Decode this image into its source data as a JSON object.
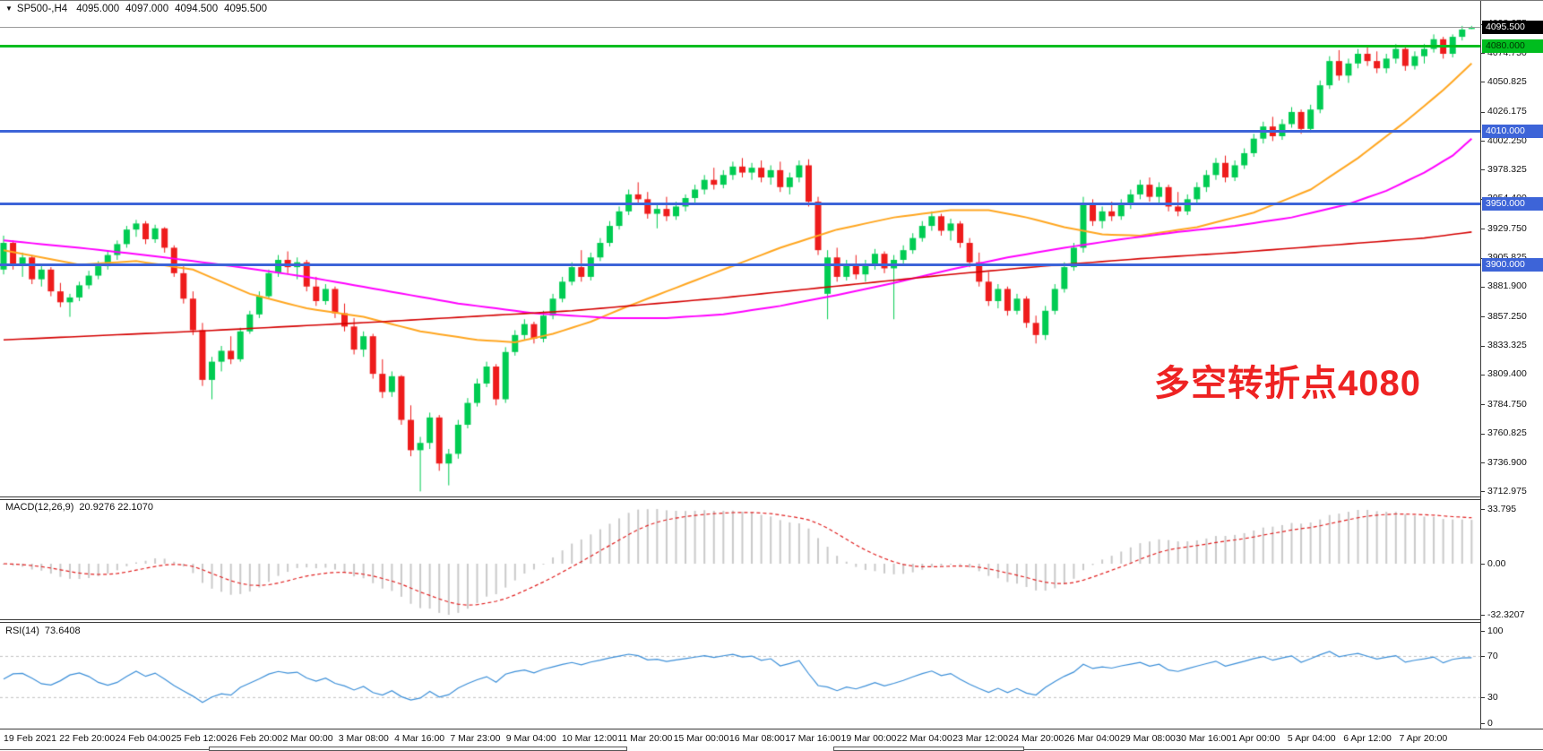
{
  "header": {
    "collapse_icon": "▼",
    "symbol": "SP500-,H4",
    "open": "4095.000",
    "high": "4097.000",
    "low": "4094.500",
    "close": "4095.500"
  },
  "annotation": {
    "text": "多空转折点4080",
    "color": "#ee2222"
  },
  "price_axis": {
    "ticks": [
      "4098.675",
      "4074.750",
      "4050.825",
      "4026.175",
      "4002.250",
      "3978.325",
      "3954.400",
      "3929.750",
      "3905.825",
      "3881.900",
      "3857.250",
      "3833.325",
      "3809.400",
      "3784.750",
      "3760.825",
      "3736.900",
      "3712.975"
    ]
  },
  "price_levels": [
    {
      "label": "4095.500",
      "price": 4095.5,
      "line_color": "#9a9a9a",
      "line_width": 1,
      "box_bg": "#000000",
      "box_fg": "#ffffff"
    },
    {
      "label": "4080.000",
      "price": 4080.0,
      "line_color": "#00bd1f",
      "line_width": 3,
      "box_bg": "#00bd1f",
      "box_fg": "#003300"
    },
    {
      "label": "4010.000",
      "price": 4010.0,
      "line_color": "#3d64d8",
      "line_width": 3,
      "box_bg": "#3d64d8",
      "box_fg": "#ffffff"
    },
    {
      "label": "3950.000",
      "price": 3950.0,
      "line_color": "#3d64d8",
      "line_width": 3,
      "box_bg": "#3d64d8",
      "box_fg": "#ffffff"
    },
    {
      "label": "3900.000",
      "price": 3900.0,
      "line_color": "#3d64d8",
      "line_width": 3,
      "box_bg": "#3d64d8",
      "box_fg": "#ffffff"
    }
  ],
  "macd": {
    "label": "MACD(12,26,9)",
    "values_text": "20.9276 22.1070",
    "axis_ticks": [
      "33.795",
      "0.00",
      "-32.3207"
    ],
    "fast": 12,
    "slow": 26,
    "signal": 9,
    "hist_color": "#c9c9c9",
    "signal_color": "#e02020"
  },
  "rsi": {
    "label": "RSI(14)",
    "value_text": "73.6408",
    "axis_ticks": [
      "100",
      "70",
      "30",
      "0"
    ],
    "period": 14,
    "levels": [
      70,
      30
    ],
    "line_color": "#3c8fd8",
    "level_color": "#c0c0c0"
  },
  "time_axis": {
    "labels": [
      "19 Feb 2021",
      "22 Feb 20:00",
      "24 Feb 04:00",
      "25 Feb 12:00",
      "26 Feb 20:00",
      "2 Mar 00:00",
      "3 Mar 08:00",
      "4 Mar 16:00",
      "7 Mar 23:00",
      "9 Mar 04:00",
      "10 Mar 12:00",
      "11 Mar 20:00",
      "15 Mar 00:00",
      "16 Mar 08:00",
      "17 Mar 16:00",
      "19 Mar 00:00",
      "22 Mar 04:00",
      "23 Mar 12:00",
      "24 Mar 20:00",
      "26 Mar 04:00",
      "29 Mar 08:00",
      "30 Mar 16:00",
      "1 Apr 00:00",
      "5 Apr 04:00",
      "6 Apr 12:00",
      "7 Apr 20:00"
    ]
  },
  "chart_data": {
    "type": "candlestick",
    "symbol": "SP500-",
    "timeframe": "H4",
    "colors": {
      "bull": "#00cc52",
      "bear": "#ee1c1c"
    },
    "ohlc": [
      [
        3896,
        3924,
        3892,
        3918
      ],
      [
        3918,
        3920,
        3896,
        3900
      ],
      [
        3900,
        3910,
        3890,
        3906
      ],
      [
        3906,
        3908,
        3884,
        3888
      ],
      [
        3888,
        3900,
        3882,
        3896
      ],
      [
        3896,
        3898,
        3874,
        3878
      ],
      [
        3878,
        3885,
        3865,
        3869
      ],
      [
        3869,
        3876,
        3857,
        3873
      ],
      [
        3873,
        3886,
        3870,
        3883
      ],
      [
        3883,
        3895,
        3880,
        3891
      ],
      [
        3891,
        3903,
        3888,
        3899
      ],
      [
        3899,
        3912,
        3896,
        3908
      ],
      [
        3908,
        3920,
        3904,
        3917
      ],
      [
        3917,
        3932,
        3914,
        3929
      ],
      [
        3929,
        3937,
        3923,
        3934
      ],
      [
        3934,
        3936,
        3917,
        3921
      ],
      [
        3921,
        3933,
        3918,
        3930
      ],
      [
        3930,
        3931,
        3910,
        3914
      ],
      [
        3914,
        3916,
        3890,
        3893
      ],
      [
        3893,
        3899,
        3868,
        3872
      ],
      [
        3872,
        3878,
        3842,
        3846
      ],
      [
        3846,
        3852,
        3800,
        3805
      ],
      [
        3805,
        3824,
        3789,
        3820
      ],
      [
        3820,
        3833,
        3812,
        3829
      ],
      [
        3829,
        3841,
        3818,
        3822
      ],
      [
        3822,
        3848,
        3820,
        3845
      ],
      [
        3845,
        3862,
        3843,
        3859
      ],
      [
        3859,
        3878,
        3856,
        3874
      ],
      [
        3874,
        3896,
        3872,
        3893
      ],
      [
        3893,
        3908,
        3890,
        3904
      ],
      [
        3904,
        3911,
        3893,
        3898
      ],
      [
        3898,
        3906,
        3888,
        3902
      ],
      [
        3902,
        3904,
        3878,
        3882
      ],
      [
        3882,
        3890,
        3866,
        3870
      ],
      [
        3870,
        3884,
        3867,
        3880
      ],
      [
        3880,
        3882,
        3856,
        3860
      ],
      [
        3860,
        3868,
        3845,
        3849
      ],
      [
        3849,
        3856,
        3826,
        3830
      ],
      [
        3830,
        3845,
        3824,
        3841
      ],
      [
        3841,
        3843,
        3806,
        3810
      ],
      [
        3810,
        3822,
        3790,
        3795
      ],
      [
        3795,
        3812,
        3791,
        3808
      ],
      [
        3808,
        3809,
        3768,
        3772
      ],
      [
        3772,
        3784,
        3742,
        3747
      ],
      [
        3747,
        3758,
        3713,
        3753
      ],
      [
        3753,
        3778,
        3748,
        3774
      ],
      [
        3774,
        3776,
        3730,
        3736
      ],
      [
        3736,
        3748,
        3718,
        3744
      ],
      [
        3744,
        3772,
        3740,
        3768
      ],
      [
        3768,
        3790,
        3765,
        3786
      ],
      [
        3786,
        3806,
        3783,
        3802
      ],
      [
        3802,
        3820,
        3799,
        3816
      ],
      [
        3816,
        3818,
        3784,
        3789
      ],
      [
        3789,
        3832,
        3786,
        3828
      ],
      [
        3828,
        3846,
        3825,
        3842
      ],
      [
        3842,
        3855,
        3838,
        3851
      ],
      [
        3851,
        3853,
        3835,
        3839
      ],
      [
        3839,
        3862,
        3836,
        3858
      ],
      [
        3858,
        3876,
        3855,
        3872
      ],
      [
        3872,
        3890,
        3869,
        3886
      ],
      [
        3886,
        3902,
        3883,
        3898
      ],
      [
        3898,
        3912,
        3886,
        3890
      ],
      [
        3890,
        3910,
        3887,
        3906
      ],
      [
        3906,
        3922,
        3903,
        3918
      ],
      [
        3918,
        3936,
        3915,
        3932
      ],
      [
        3932,
        3948,
        3929,
        3944
      ],
      [
        3944,
        3962,
        3941,
        3958
      ],
      [
        3958,
        3968,
        3950,
        3954
      ],
      [
        3954,
        3960,
        3938,
        3942
      ],
      [
        3942,
        3950,
        3930,
        3946
      ],
      [
        3946,
        3956,
        3936,
        3940
      ],
      [
        3940,
        3952,
        3937,
        3948
      ],
      [
        3948,
        3958,
        3944,
        3955
      ],
      [
        3955,
        3966,
        3951,
        3962
      ],
      [
        3962,
        3974,
        3958,
        3970
      ],
      [
        3970,
        3980,
        3962,
        3966
      ],
      [
        3966,
        3978,
        3963,
        3974
      ],
      [
        3974,
        3985,
        3970,
        3981
      ],
      [
        3981,
        3988,
        3972,
        3976
      ],
      [
        3976,
        3984,
        3970,
        3980
      ],
      [
        3980,
        3986,
        3968,
        3972
      ],
      [
        3972,
        3982,
        3966,
        3978
      ],
      [
        3978,
        3985,
        3960,
        3964
      ],
      [
        3964,
        3976,
        3958,
        3972
      ],
      [
        3972,
        3986,
        3968,
        3982
      ],
      [
        3982,
        3987,
        3948,
        3952
      ],
      [
        3952,
        3956,
        3908,
        3912
      ],
      [
        3876,
        3912,
        3855,
        3906
      ],
      [
        3906,
        3914,
        3886,
        3890
      ],
      [
        3890,
        3904,
        3887,
        3900
      ],
      [
        3900,
        3908,
        3888,
        3892
      ],
      [
        3892,
        3904,
        3886,
        3900
      ],
      [
        3900,
        3913,
        3896,
        3909
      ],
      [
        3909,
        3911,
        3893,
        3897
      ],
      [
        3897,
        3908,
        3855,
        3904
      ],
      [
        3904,
        3916,
        3900,
        3912
      ],
      [
        3912,
        3926,
        3909,
        3922
      ],
      [
        3922,
        3936,
        3919,
        3932
      ],
      [
        3932,
        3944,
        3928,
        3940
      ],
      [
        3940,
        3942,
        3924,
        3928
      ],
      [
        3928,
        3938,
        3920,
        3934
      ],
      [
        3934,
        3936,
        3914,
        3918
      ],
      [
        3918,
        3922,
        3898,
        3902
      ],
      [
        3902,
        3910,
        3882,
        3886
      ],
      [
        3886,
        3894,
        3866,
        3870
      ],
      [
        3870,
        3884,
        3864,
        3880
      ],
      [
        3880,
        3882,
        3858,
        3862
      ],
      [
        3862,
        3876,
        3859,
        3872
      ],
      [
        3872,
        3874,
        3848,
        3852
      ],
      [
        3852,
        3858,
        3835,
        3842
      ],
      [
        3842,
        3866,
        3838,
        3862
      ],
      [
        3862,
        3884,
        3859,
        3880
      ],
      [
        3880,
        3902,
        3877,
        3898
      ],
      [
        3898,
        3918,
        3895,
        3914
      ],
      [
        3914,
        3956,
        3910,
        3950
      ],
      [
        3950,
        3954,
        3932,
        3936
      ],
      [
        3936,
        3948,
        3930,
        3944
      ],
      [
        3944,
        3952,
        3936,
        3940
      ],
      [
        3940,
        3954,
        3937,
        3950
      ],
      [
        3950,
        3962,
        3946,
        3958
      ],
      [
        3958,
        3970,
        3954,
        3966
      ],
      [
        3966,
        3972,
        3952,
        3956
      ],
      [
        3956,
        3968,
        3950,
        3964
      ],
      [
        3964,
        3966,
        3944,
        3948
      ],
      [
        3948,
        3960,
        3940,
        3944
      ],
      [
        3944,
        3958,
        3941,
        3954
      ],
      [
        3954,
        3968,
        3950,
        3964
      ],
      [
        3964,
        3978,
        3960,
        3974
      ],
      [
        3974,
        3988,
        3970,
        3984
      ],
      [
        3984,
        3990,
        3968,
        3972
      ],
      [
        3972,
        3986,
        3969,
        3982
      ],
      [
        3982,
        3996,
        3979,
        3992
      ],
      [
        3992,
        4008,
        3989,
        4004
      ],
      [
        4004,
        4018,
        4000,
        4014
      ],
      [
        4014,
        4022,
        4002,
        4006
      ],
      [
        4006,
        4020,
        4003,
        4016
      ],
      [
        4016,
        4030,
        4013,
        4026
      ],
      [
        4026,
        4028,
        4008,
        4012
      ],
      [
        4012,
        4032,
        4009,
        4028
      ],
      [
        4028,
        4052,
        4025,
        4048
      ],
      [
        4048,
        4072,
        4045,
        4068
      ],
      [
        4068,
        4077,
        4052,
        4056
      ],
      [
        4056,
        4070,
        4050,
        4066
      ],
      [
        4066,
        4078,
        4062,
        4074
      ],
      [
        4074,
        4080,
        4064,
        4068
      ],
      [
        4068,
        4076,
        4058,
        4062
      ],
      [
        4062,
        4074,
        4058,
        4070
      ],
      [
        4070,
        4082,
        4066,
        4078
      ],
      [
        4078,
        4080,
        4060,
        4064
      ],
      [
        4064,
        4076,
        4061,
        4072
      ],
      [
        4072,
        4082,
        4066,
        4078
      ],
      [
        4078,
        4090,
        4075,
        4086
      ],
      [
        4086,
        4088,
        4070,
        4074
      ],
      [
        4074,
        4090,
        4071,
        4088
      ],
      [
        4088,
        4097,
        4085,
        4094
      ],
      [
        4095,
        4097,
        4094.5,
        4095.5
      ]
    ],
    "moving_averages": [
      {
        "name": "ma-fast",
        "color": "#ffa620",
        "width": 2,
        "points": [
          [
            0,
            3912
          ],
          [
            8,
            3900
          ],
          [
            14,
            3903
          ],
          [
            20,
            3896
          ],
          [
            26,
            3876
          ],
          [
            32,
            3864
          ],
          [
            38,
            3857
          ],
          [
            44,
            3845
          ],
          [
            50,
            3838
          ],
          [
            54,
            3836
          ],
          [
            58,
            3843
          ],
          [
            62,
            3853
          ],
          [
            66,
            3866
          ],
          [
            70,
            3878
          ],
          [
            76,
            3896
          ],
          [
            82,
            3914
          ],
          [
            88,
            3929
          ],
          [
            94,
            3939
          ],
          [
            100,
            3945
          ],
          [
            104,
            3945
          ],
          [
            108,
            3939
          ],
          [
            112,
            3931
          ],
          [
            116,
            3925
          ],
          [
            120,
            3924
          ],
          [
            126,
            3931
          ],
          [
            132,
            3943
          ],
          [
            138,
            3962
          ],
          [
            143,
            3988
          ],
          [
            148,
            4018
          ],
          [
            152,
            4044
          ],
          [
            155,
            4066
          ]
        ]
      },
      {
        "name": "ma-mid",
        "color": "#ff00ff",
        "width": 2,
        "points": [
          [
            0,
            3920
          ],
          [
            8,
            3914
          ],
          [
            16,
            3907
          ],
          [
            24,
            3899
          ],
          [
            32,
            3890
          ],
          [
            40,
            3879
          ],
          [
            48,
            3868
          ],
          [
            56,
            3860
          ],
          [
            64,
            3856
          ],
          [
            70,
            3856
          ],
          [
            76,
            3859
          ],
          [
            82,
            3866
          ],
          [
            88,
            3875
          ],
          [
            94,
            3885
          ],
          [
            100,
            3896
          ],
          [
            106,
            3906
          ],
          [
            112,
            3914
          ],
          [
            118,
            3921
          ],
          [
            124,
            3927
          ],
          [
            130,
            3932
          ],
          [
            136,
            3939
          ],
          [
            142,
            3950
          ],
          [
            146,
            3961
          ],
          [
            150,
            3976
          ],
          [
            153,
            3990
          ],
          [
            155,
            4004
          ]
        ]
      },
      {
        "name": "ma-slow",
        "color": "#d40000",
        "width": 1.6,
        "points": [
          [
            0,
            3838
          ],
          [
            20,
            3845
          ],
          [
            40,
            3853
          ],
          [
            60,
            3862
          ],
          [
            75,
            3872
          ],
          [
            90,
            3884
          ],
          [
            100,
            3892
          ],
          [
            110,
            3899
          ],
          [
            120,
            3905
          ],
          [
            130,
            3910
          ],
          [
            140,
            3916
          ],
          [
            150,
            3922
          ],
          [
            155,
            3927
          ]
        ]
      }
    ]
  }
}
